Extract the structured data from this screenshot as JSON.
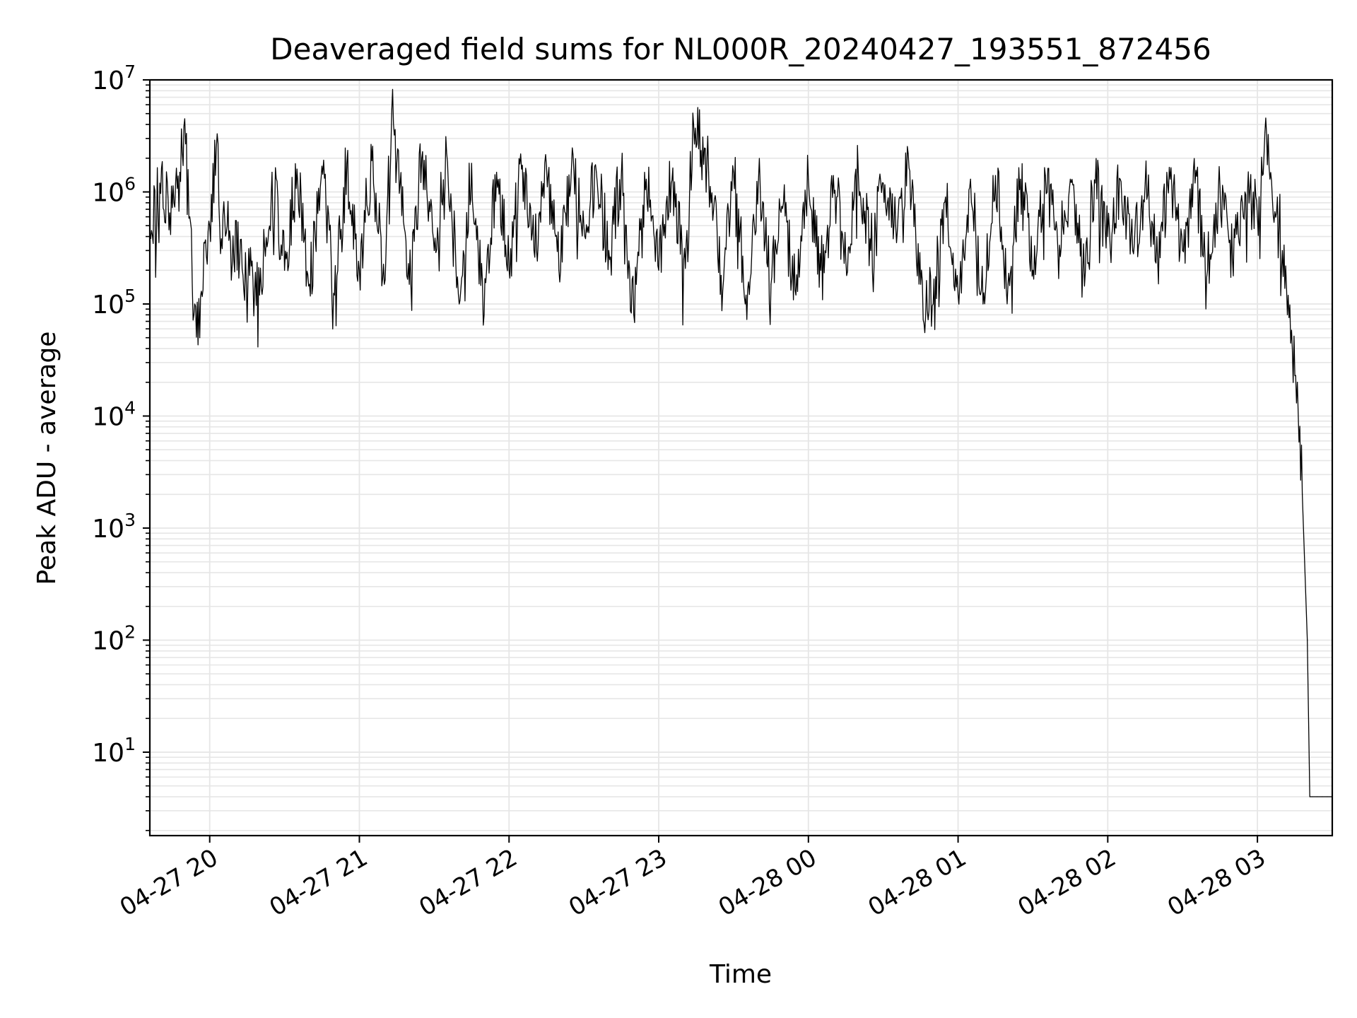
{
  "chart_data": {
    "type": "line",
    "title": "Deaveraged field sums for NL000R_20240427_193551_872456",
    "xlabel": "Time",
    "ylabel": "Peak ADU - average",
    "yscale": "log",
    "ylim": [
      1.8,
      10000000
    ],
    "xlim": [
      "2024-04-27 19:36",
      "2024-04-28 03:30"
    ],
    "x_ticks": [
      {
        "t": "2024-04-27 20:00",
        "label": "04-27 20"
      },
      {
        "t": "2024-04-27 21:00",
        "label": "04-27 21"
      },
      {
        "t": "2024-04-27 22:00",
        "label": "04-27 22"
      },
      {
        "t": "2024-04-27 23:00",
        "label": "04-27 23"
      },
      {
        "t": "2024-04-28 00:00",
        "label": "04-28 00"
      },
      {
        "t": "2024-04-28 01:00",
        "label": "04-28 01"
      },
      {
        "t": "2024-04-28 02:00",
        "label": "04-28 02"
      },
      {
        "t": "2024-04-28 03:00",
        "label": "04-28 03"
      }
    ],
    "y_ticks": [
      {
        "value": 10,
        "base": "10",
        "exp": "1"
      },
      {
        "value": 100,
        "base": "10",
        "exp": "2"
      },
      {
        "value": 1000,
        "base": "10",
        "exp": "3"
      },
      {
        "value": 10000,
        "base": "10",
        "exp": "4"
      },
      {
        "value": 100000,
        "base": "10",
        "exp": "5"
      },
      {
        "value": 1000000,
        "base": "10",
        "exp": "6"
      },
      {
        "value": 10000000,
        "base": "10",
        "exp": "7"
      }
    ],
    "grid": true,
    "line_color": "#000000",
    "grid_color": "#e6e6e6",
    "series": [
      {
        "x": [
          "2024-04-27 19:36",
          "2024-04-27 19:40",
          "2024-04-27 19:44",
          "2024-04-27 19:48",
          "2024-04-27 19:50",
          "2024-04-27 19:52",
          "2024-04-27 19:54",
          "2024-04-27 19:56",
          "2024-04-27 19:58",
          "2024-04-27 20:00",
          "2024-04-27 20:03",
          "2024-04-27 20:04",
          "2024-04-27 20:08",
          "2024-04-27 20:12",
          "2024-04-27 20:16",
          "2024-04-27 20:20",
          "2024-04-27 20:25",
          "2024-04-27 20:30",
          "2024-04-27 20:35",
          "2024-04-27 20:40",
          "2024-04-27 20:45",
          "2024-04-27 20:50",
          "2024-04-27 20:55",
          "2024-04-27 21:00",
          "2024-04-27 21:05",
          "2024-04-27 21:10",
          "2024-04-27 21:13",
          "2024-04-27 21:15",
          "2024-04-27 21:20",
          "2024-04-27 21:25",
          "2024-04-27 21:30",
          "2024-04-27 21:35",
          "2024-04-27 21:40",
          "2024-04-27 21:45",
          "2024-04-27 21:50",
          "2024-04-27 21:55",
          "2024-04-27 22:00",
          "2024-04-27 22:05",
          "2024-04-27 22:10",
          "2024-04-27 22:15",
          "2024-04-27 22:20",
          "2024-04-27 22:25",
          "2024-04-27 22:30",
          "2024-04-27 22:35",
          "2024-04-27 22:40",
          "2024-04-27 22:45",
          "2024-04-27 22:50",
          "2024-04-27 22:55",
          "2024-04-27 23:00",
          "2024-04-27 23:05",
          "2024-04-27 23:10",
          "2024-04-27 23:14",
          "2024-04-27 23:20",
          "2024-04-27 23:25",
          "2024-04-27 23:30",
          "2024-04-27 23:35",
          "2024-04-27 23:40",
          "2024-04-27 23:45",
          "2024-04-27 23:50",
          "2024-04-27 23:55",
          "2024-04-28 00:00",
          "2024-04-28 00:05",
          "2024-04-28 00:10",
          "2024-04-28 00:15",
          "2024-04-28 00:20",
          "2024-04-28 00:25",
          "2024-04-28 00:30",
          "2024-04-28 00:35",
          "2024-04-28 00:40",
          "2024-04-28 00:45",
          "2024-04-28 00:50",
          "2024-04-28 00:55",
          "2024-04-28 01:00",
          "2024-04-28 01:05",
          "2024-04-28 01:10",
          "2024-04-28 01:15",
          "2024-04-28 01:20",
          "2024-04-28 01:25",
          "2024-04-28 01:30",
          "2024-04-28 01:35",
          "2024-04-28 01:40",
          "2024-04-28 01:45",
          "2024-04-28 01:50",
          "2024-04-28 01:55",
          "2024-04-28 02:00",
          "2024-04-28 02:05",
          "2024-04-28 02:10",
          "2024-04-28 02:15",
          "2024-04-28 02:20",
          "2024-04-28 02:25",
          "2024-04-28 02:30",
          "2024-04-28 02:35",
          "2024-04-28 02:40",
          "2024-04-28 02:45",
          "2024-04-28 02:50",
          "2024-04-28 02:55",
          "2024-04-28 03:00",
          "2024-04-28 03:03",
          "2024-04-28 03:05",
          "2024-04-28 03:08",
          "2024-04-28 03:10",
          "2024-04-28 03:12",
          "2024-04-28 03:14",
          "2024-04-28 03:16",
          "2024-04-28 03:18",
          "2024-04-28 03:20",
          "2024-04-28 03:21",
          "2024-04-28 03:22",
          "2024-04-28 03:24",
          "2024-04-28 03:26",
          "2024-04-28 03:28",
          "2024-04-28 03:30"
        ],
        "y": [
          400000,
          1200000,
          650000,
          1500000,
          4500000,
          600000,
          100000,
          50000,
          350000,
          500000,
          3300000,
          500000,
          450000,
          250000,
          180000,
          120000,
          1500000,
          200000,
          1600000,
          150000,
          1700000,
          120000,
          1800000,
          200000,
          1900000,
          150000,
          5500000,
          1800000,
          150000,
          2000000,
          300000,
          2200000,
          100000,
          1800000,
          80000,
          1500000,
          200000,
          1600000,
          300000,
          1700000,
          200000,
          1600000,
          500000,
          1500000,
          300000,
          1400000,
          80000,
          1300000,
          200000,
          1200000,
          250000,
          4000000,
          1500000,
          180000,
          1500000,
          120000,
          1300000,
          150000,
          800000,
          120000,
          1300000,
          200000,
          1400000,
          250000,
          1500000,
          300000,
          1200000,
          500000,
          2200000,
          150000,
          100000,
          900000,
          120000,
          1300000,
          100000,
          1400000,
          150000,
          1300000,
          200000,
          1400000,
          300000,
          1300000,
          200000,
          1200000,
          400000,
          1300000,
          300000,
          1200000,
          250000,
          1300000,
          300000,
          1200000,
          200000,
          1100000,
          250000,
          1000000,
          600000,
          3400000,
          1300000,
          900000,
          300000,
          80000,
          40000,
          20000,
          2000,
          100,
          4,
          4,
          4,
          4,
          4,
          4
        ]
      }
    ]
  }
}
